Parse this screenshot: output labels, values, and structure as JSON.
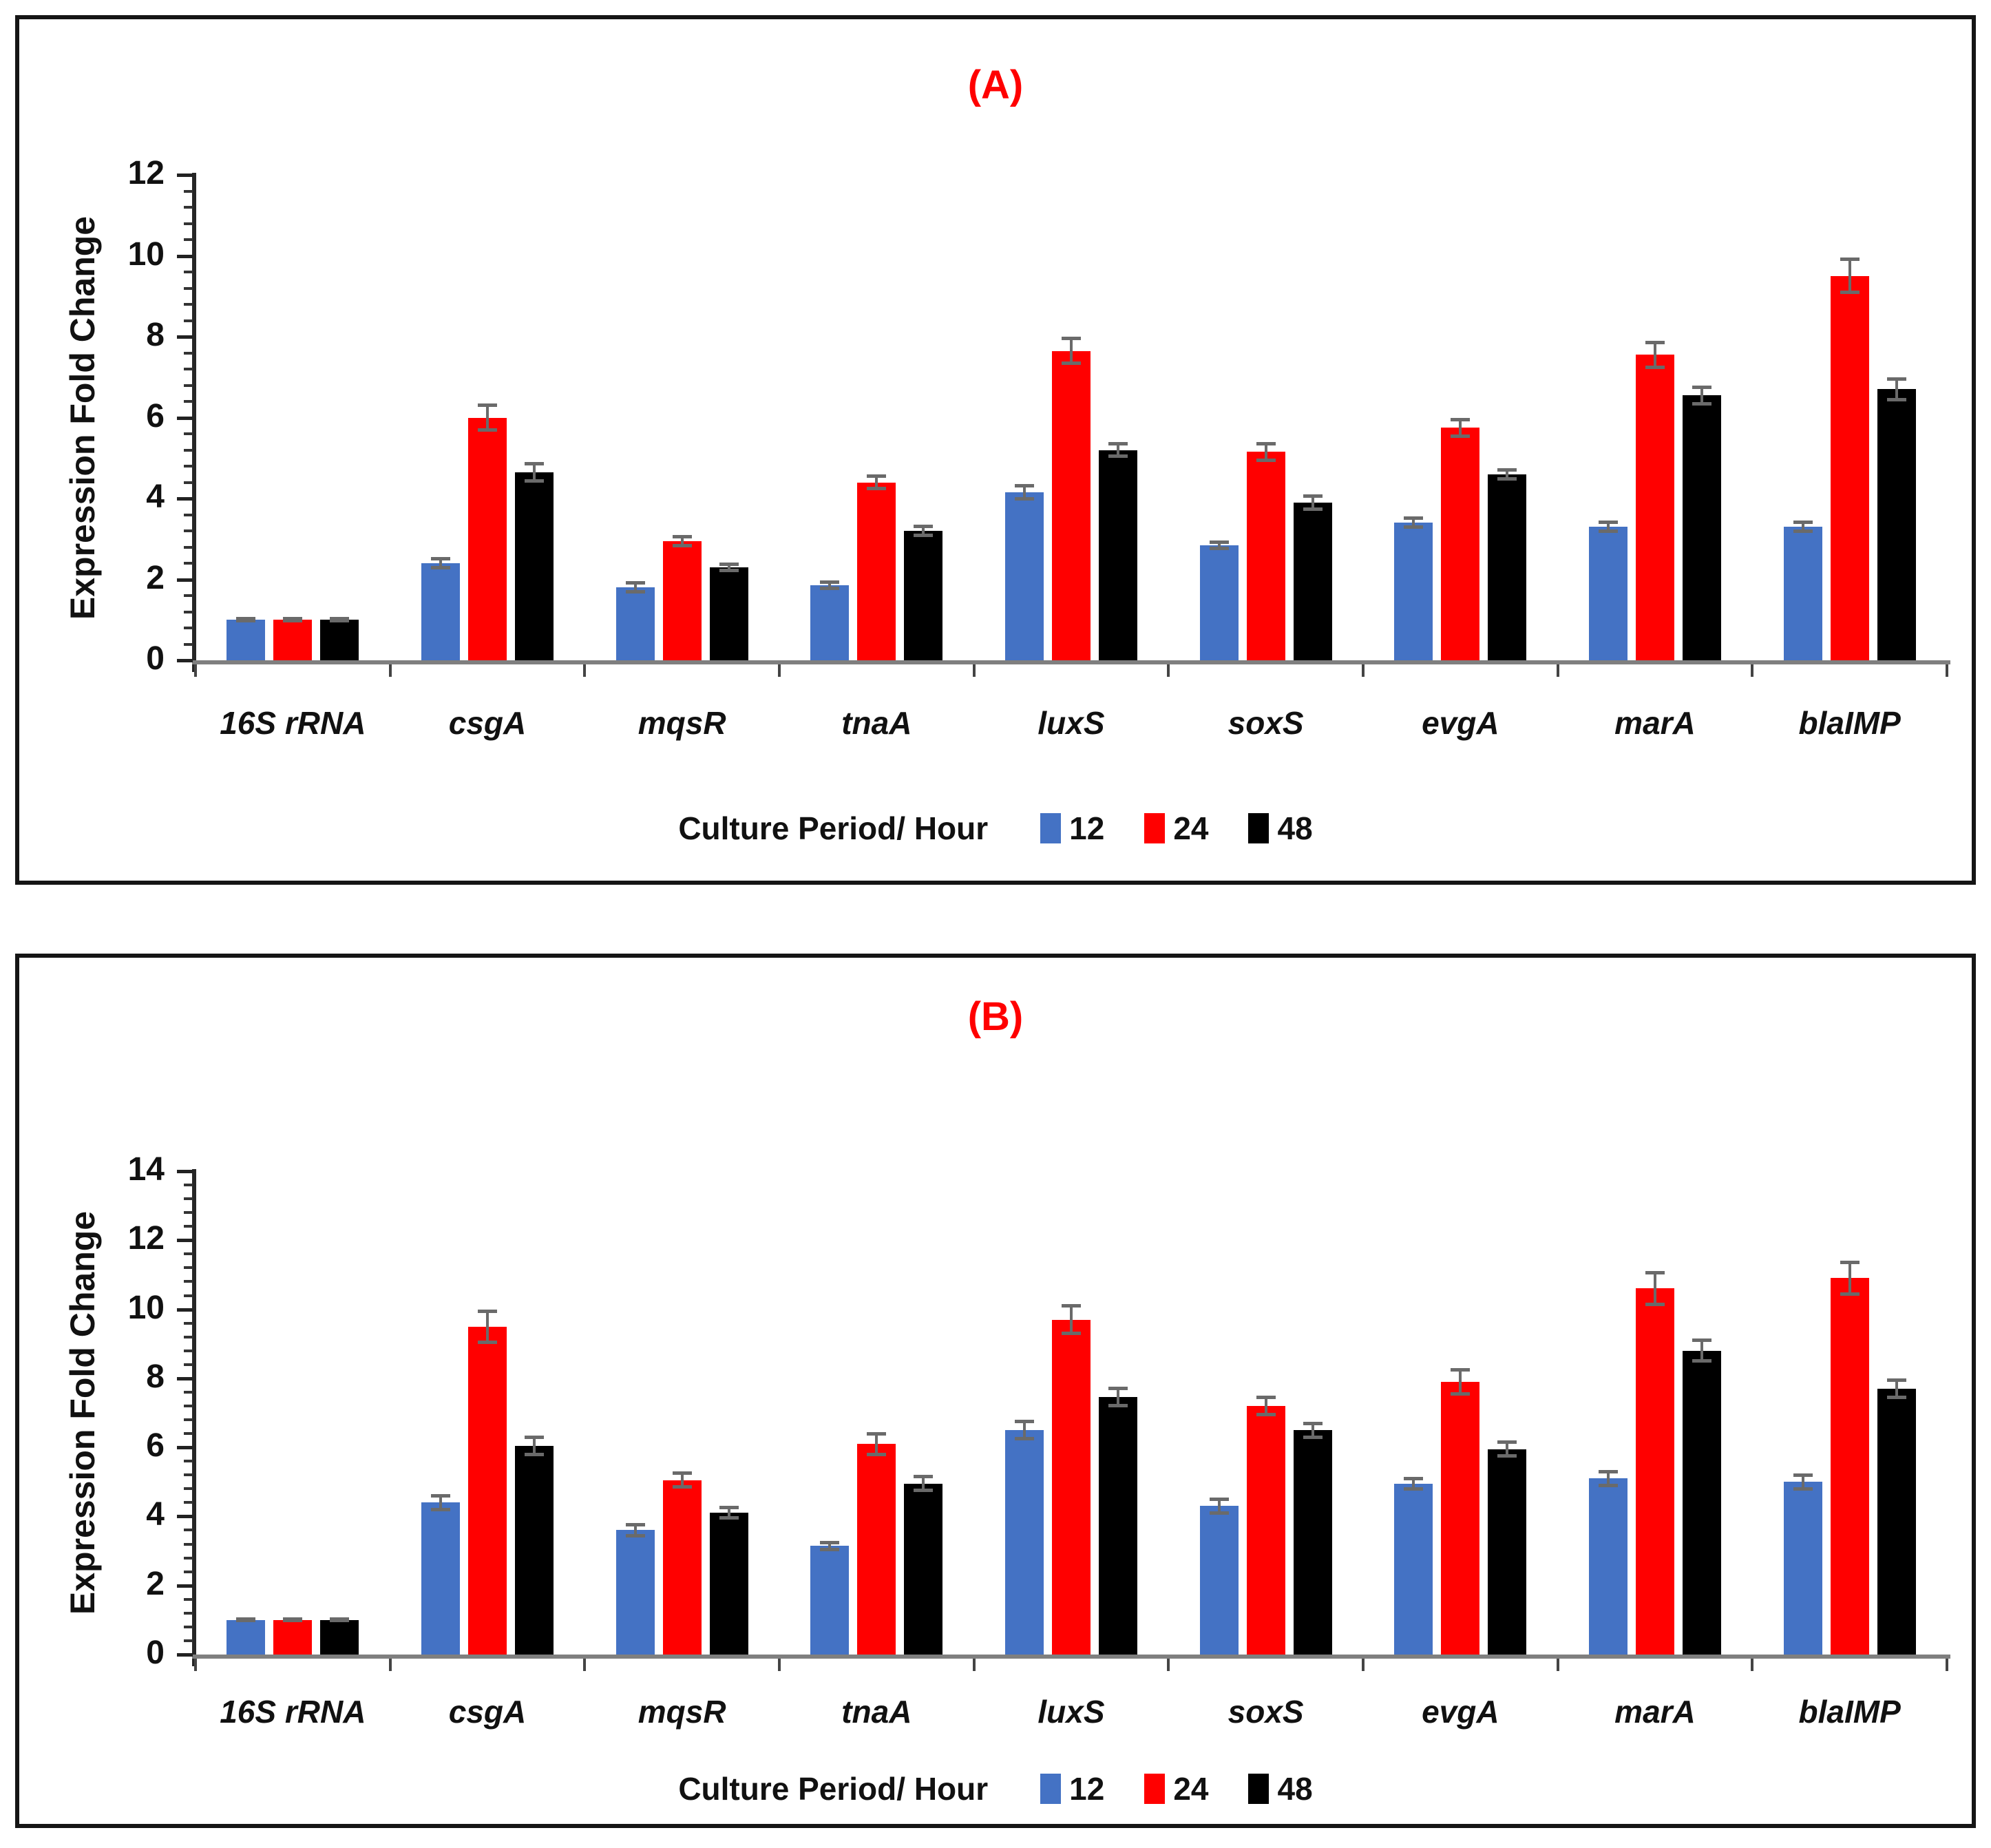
{
  "figure": {
    "background": "#ffffff",
    "panel_border_color": "#151515",
    "title_color": "#ff0000",
    "error_bar_color": "#6a6a6a",
    "value_axis_color": "#262626",
    "category_axis_color": "#7f7f7f"
  },
  "chart_data": [
    {
      "type": "bar",
      "title": "(A)",
      "title_color": "#ff0000",
      "ylabel": "Expression Fold Change",
      "xlabel": "",
      "legend_title": "Culture Period/ Hour",
      "legend_position": "bottom",
      "grid": false,
      "ylim": [
        0,
        12
      ],
      "ystep": 2,
      "yminor": 0.4,
      "categories": [
        "16S rRNA",
        "csgA",
        "mqsR",
        "tnaA",
        "luxS",
        "soxS",
        "evgA",
        "marA",
        "blaIMP"
      ],
      "series": [
        {
          "name": "12",
          "color": "#4472C4",
          "values": [
            1.0,
            2.4,
            1.8,
            1.85,
            4.15,
            2.85,
            3.4,
            3.3,
            3.3
          ],
          "errors": [
            0.07,
            0.15,
            0.15,
            0.12,
            0.2,
            0.12,
            0.15,
            0.15,
            0.15
          ]
        },
        {
          "name": "24",
          "color": "#FF0000",
          "values": [
            1.0,
            6.0,
            2.95,
            4.4,
            7.65,
            5.15,
            5.75,
            7.55,
            9.5
          ],
          "errors": [
            0.07,
            0.35,
            0.15,
            0.2,
            0.35,
            0.25,
            0.25,
            0.35,
            0.45
          ]
        },
        {
          "name": "48",
          "color": "#000000",
          "values": [
            1.0,
            4.65,
            2.3,
            3.2,
            5.2,
            3.9,
            4.6,
            6.55,
            6.7
          ],
          "errors": [
            0.07,
            0.25,
            0.12,
            0.15,
            0.2,
            0.2,
            0.15,
            0.25,
            0.3
          ]
        }
      ]
    },
    {
      "type": "bar",
      "title": "(B)",
      "title_color": "#ff0000",
      "ylabel": "Expression Fold Change",
      "xlabel": "",
      "legend_title": "Culture Period/ Hour",
      "legend_position": "bottom",
      "grid": false,
      "ylim": [
        0,
        14
      ],
      "ystep": 2,
      "yminor": 0.4,
      "categories": [
        "16S rRNA",
        "csgA",
        "mqsR",
        "tnaA",
        "luxS",
        "soxS",
        "evgA",
        "marA",
        "blaIMP"
      ],
      "series": [
        {
          "name": "12",
          "color": "#4472C4",
          "values": [
            1.0,
            4.4,
            3.6,
            3.15,
            6.5,
            4.3,
            4.95,
            5.1,
            5.0
          ],
          "errors": [
            0.07,
            0.25,
            0.2,
            0.15,
            0.3,
            0.25,
            0.2,
            0.25,
            0.25
          ]
        },
        {
          "name": "24",
          "color": "#FF0000",
          "values": [
            1.0,
            9.5,
            5.05,
            6.1,
            9.7,
            7.2,
            7.9,
            10.6,
            10.9
          ],
          "errors": [
            0.07,
            0.5,
            0.25,
            0.35,
            0.45,
            0.3,
            0.4,
            0.5,
            0.5
          ]
        },
        {
          "name": "48",
          "color": "#000000",
          "values": [
            1.0,
            6.05,
            4.1,
            4.95,
            7.45,
            6.5,
            5.95,
            8.8,
            7.7
          ],
          "errors": [
            0.07,
            0.3,
            0.2,
            0.25,
            0.3,
            0.25,
            0.25,
            0.35,
            0.3
          ]
        }
      ]
    }
  ]
}
